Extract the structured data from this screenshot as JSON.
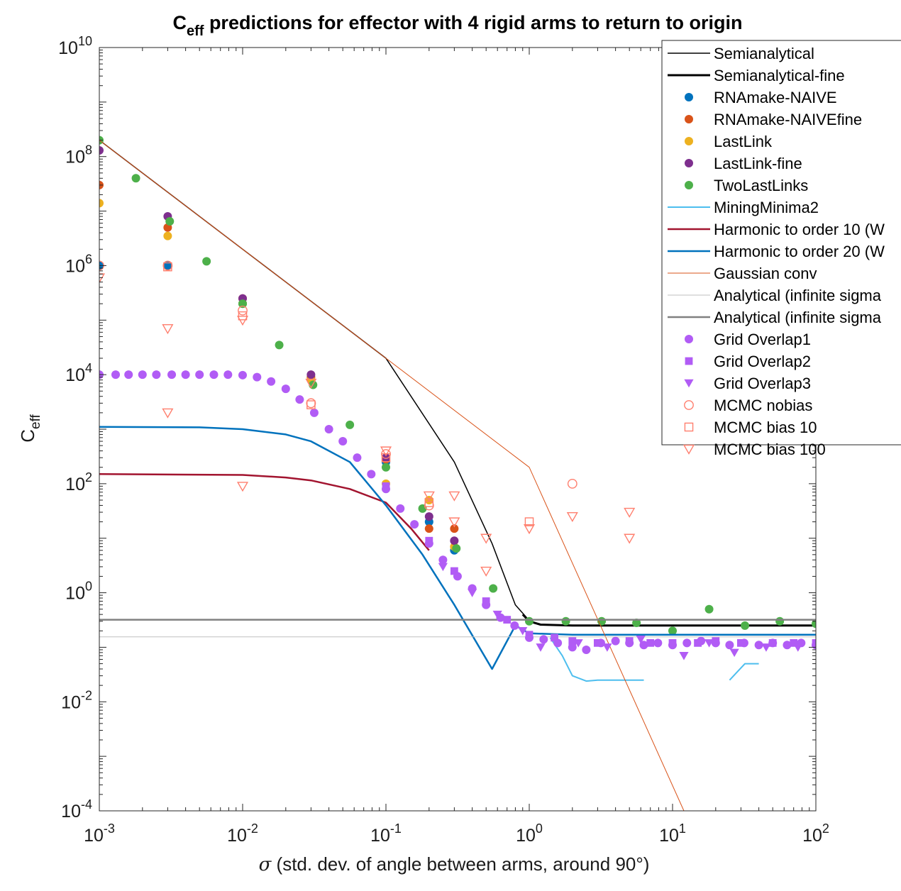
{
  "chart_data": {
    "type": "scatter",
    "title_main": "C",
    "title_sub": "eff",
    "title_rest": " predictions for effector with 4 rigid arms to return to origin",
    "xlabel_symbol": "σ",
    "xlabel_text": " (std. dev. of angle between arms, around 90°)",
    "ylabel_main": "C",
    "ylabel_sub": "eff",
    "xscale": "log",
    "yscale": "log",
    "xlim": [
      0.001,
      100
    ],
    "ylim": [
      0.0001,
      10000000000
    ],
    "legend_position": "top-right",
    "x_ticks": [
      {
        "value": 0.001,
        "base": "10",
        "exp": "-3"
      },
      {
        "value": 0.01,
        "base": "10",
        "exp": "-2"
      },
      {
        "value": 0.1,
        "base": "10",
        "exp": "-1"
      },
      {
        "value": 1,
        "base": "10",
        "exp": "0"
      },
      {
        "value": 10,
        "base": "10",
        "exp": "1"
      },
      {
        "value": 100,
        "base": "10",
        "exp": "2"
      }
    ],
    "y_ticks": [
      {
        "value": 0.0001,
        "base": "10",
        "exp": "-4"
      },
      {
        "value": 0.01,
        "base": "10",
        "exp": "-2"
      },
      {
        "value": 1,
        "base": "10",
        "exp": "0"
      },
      {
        "value": 100,
        "base": "10",
        "exp": "2"
      },
      {
        "value": 10000,
        "base": "10",
        "exp": "4"
      },
      {
        "value": 1000000,
        "base": "10",
        "exp": "6"
      },
      {
        "value": 100000000,
        "base": "10",
        "exp": "8"
      },
      {
        "value": 10000000000,
        "base": "10",
        "exp": "10"
      }
    ],
    "series": [
      {
        "name": "Semianalytical",
        "style": "line",
        "color": "#000000",
        "width": 1.5,
        "points": [
          [
            0.001,
            200000000
          ],
          [
            0.01,
            2000000
          ],
          [
            0.1,
            20000
          ],
          [
            0.3,
            250
          ],
          [
            0.55,
            8
          ],
          [
            0.8,
            0.6
          ],
          [
            1.0,
            0.31
          ],
          [
            1.2,
            0.26
          ],
          [
            2,
            0.25
          ],
          [
            10,
            0.25
          ],
          [
            100,
            0.25
          ]
        ]
      },
      {
        "name": "Semianalytical-fine",
        "style": "line",
        "color": "#000000",
        "width": 3,
        "points": [
          [
            0.9,
            0.4
          ],
          [
            1.0,
            0.3
          ],
          [
            1.2,
            0.26
          ],
          [
            2,
            0.25
          ],
          [
            10,
            0.25
          ],
          [
            100,
            0.25
          ]
        ]
      },
      {
        "name": "RNAmake-NAIVE",
        "style": "marker",
        "marker": "circle",
        "color": "#0072BD",
        "fill": true,
        "points": [
          [
            0.001,
            1000000
          ],
          [
            0.003,
            1000000
          ],
          [
            0.01,
            200000
          ],
          [
            0.03,
            8000
          ],
          [
            0.1,
            250
          ],
          [
            0.2,
            20
          ],
          [
            0.3,
            6
          ]
        ]
      },
      {
        "name": "RNAmake-NAIVEfine",
        "style": "marker",
        "marker": "circle",
        "color": "#D95319",
        "fill": true,
        "points": [
          [
            0.001,
            30000000
          ],
          [
            0.003,
            5000000
          ],
          [
            0.01,
            250000
          ],
          [
            0.03,
            9000
          ],
          [
            0.1,
            280
          ],
          [
            0.2,
            15
          ],
          [
            0.3,
            15
          ]
        ]
      },
      {
        "name": "LastLink",
        "style": "marker",
        "marker": "circle",
        "color": "#EDB120",
        "fill": true,
        "points": [
          [
            0.001,
            14000000
          ],
          [
            0.003,
            3500000
          ],
          [
            0.01,
            200000
          ],
          [
            0.03,
            8000
          ],
          [
            0.1,
            100
          ],
          [
            0.2,
            50
          ],
          [
            0.3,
            7
          ]
        ]
      },
      {
        "name": "LastLink-fine",
        "style": "marker",
        "marker": "circle",
        "color": "#7E2F8E",
        "fill": true,
        "points": [
          [
            0.001,
            130000000
          ],
          [
            0.003,
            8000000
          ],
          [
            0.01,
            250000
          ],
          [
            0.03,
            10000
          ],
          [
            0.1,
            300
          ],
          [
            0.2,
            25
          ],
          [
            0.3,
            9
          ]
        ]
      },
      {
        "name": "TwoLastLinks",
        "style": "marker",
        "marker": "circle",
        "color": "#4DB04A",
        "fill": true,
        "points": [
          [
            0.001,
            200000000
          ],
          [
            0.0018,
            40000000
          ],
          [
            0.0031,
            6500000
          ],
          [
            0.0056,
            1200000
          ],
          [
            0.01,
            200000
          ],
          [
            0.018,
            35000
          ],
          [
            0.031,
            6500
          ],
          [
            0.056,
            1200
          ],
          [
            0.1,
            200
          ],
          [
            0.18,
            35
          ],
          [
            0.31,
            6.5
          ],
          [
            0.56,
            1.2
          ],
          [
            1.0,
            0.3
          ],
          [
            1.8,
            0.3
          ],
          [
            3.2,
            0.3
          ],
          [
            5.6,
            0.28
          ],
          [
            10,
            0.2
          ],
          [
            18,
            0.5
          ],
          [
            32,
            0.25
          ],
          [
            56,
            0.3
          ],
          [
            100,
            0.27
          ]
        ]
      },
      {
        "name": "MiningMinima2",
        "style": "line",
        "color": "#4DBEEE",
        "width": 2,
        "segments": [
          [
            [
              1.4,
              0.15
            ],
            [
              1.7,
              0.07
            ],
            [
              2,
              0.03
            ],
            [
              2.5,
              0.024
            ],
            [
              3,
              0.025
            ],
            [
              4,
              0.025
            ],
            [
              6.3,
              0.025
            ]
          ],
          [
            [
              25,
              0.025
            ],
            [
              32,
              0.05
            ],
            [
              40,
              0.05
            ]
          ]
        ]
      },
      {
        "name": "Harmonic to order 10 (W",
        "style": "line",
        "color": "#A2142F",
        "width": 2.5,
        "points": [
          [
            0.001,
            150
          ],
          [
            0.01,
            145
          ],
          [
            0.02,
            130
          ],
          [
            0.03,
            115
          ],
          [
            0.056,
            80
          ],
          [
            0.1,
            45
          ],
          [
            0.15,
            15
          ],
          [
            0.2,
            6
          ]
        ]
      },
      {
        "name": "Harmonic to order 20 (W",
        "style": "line",
        "color": "#0072BD",
        "width": 2.5,
        "points": [
          [
            0.001,
            1100
          ],
          [
            0.005,
            1080
          ],
          [
            0.01,
            1000
          ],
          [
            0.02,
            800
          ],
          [
            0.03,
            600
          ],
          [
            0.056,
            250
          ],
          [
            0.1,
            40
          ],
          [
            0.18,
            5
          ],
          [
            0.3,
            0.6
          ],
          [
            0.55,
            0.04
          ],
          [
            0.8,
            0.25
          ],
          [
            1.0,
            0.18
          ],
          [
            2,
            0.17
          ],
          [
            10,
            0.17
          ],
          [
            100,
            0.17
          ]
        ]
      },
      {
        "name": "Gaussian conv",
        "style": "line",
        "color": "#D95319",
        "width": 1,
        "points": [
          [
            0.001,
            200000000
          ],
          [
            0.01,
            2000000
          ],
          [
            0.1,
            20000
          ],
          [
            1,
            200
          ],
          [
            12,
            0.0001
          ]
        ]
      },
      {
        "name": "Analytical (infinite sigma",
        "style": "line",
        "color": "#BFBFBF",
        "width": 1,
        "points": [
          [
            0.001,
            0.155
          ],
          [
            100,
            0.155
          ]
        ]
      },
      {
        "name": "Analytical (infinite sigma",
        "style": "line",
        "color": "#808080",
        "width": 2.5,
        "points": [
          [
            0.001,
            0.32
          ],
          [
            100,
            0.32
          ]
        ]
      },
      {
        "name": "Grid Overlap1",
        "style": "marker",
        "marker": "circle",
        "color": "#B15CF5",
        "fill": true,
        "points": [
          [
            0.001,
            10000
          ],
          [
            0.0013,
            10000
          ],
          [
            0.0016,
            10000
          ],
          [
            0.002,
            10000
          ],
          [
            0.0025,
            10000
          ],
          [
            0.0032,
            10000
          ],
          [
            0.004,
            10000
          ],
          [
            0.005,
            10000
          ],
          [
            0.0063,
            10000
          ],
          [
            0.0079,
            10000
          ],
          [
            0.01,
            9800
          ],
          [
            0.0126,
            9000
          ],
          [
            0.0158,
            7500
          ],
          [
            0.02,
            5500
          ],
          [
            0.025,
            3500
          ],
          [
            0.0316,
            2000
          ],
          [
            0.04,
            1000
          ],
          [
            0.05,
            600
          ],
          [
            0.063,
            300
          ],
          [
            0.079,
            150
          ],
          [
            0.1,
            80
          ],
          [
            0.126,
            35
          ],
          [
            0.158,
            18
          ],
          [
            0.2,
            8
          ],
          [
            0.25,
            4
          ],
          [
            0.316,
            2
          ],
          [
            0.4,
            1.2
          ],
          [
            0.5,
            0.6
          ],
          [
            0.63,
            0.35
          ],
          [
            0.79,
            0.25
          ],
          [
            1.0,
            0.15
          ],
          [
            1.26,
            0.14
          ],
          [
            1.58,
            0.12
          ],
          [
            2,
            0.1
          ],
          [
            2.5,
            0.09
          ],
          [
            3.16,
            0.12
          ],
          [
            4,
            0.13
          ],
          [
            5,
            0.12
          ],
          [
            6.3,
            0.11
          ],
          [
            7.9,
            0.12
          ],
          [
            10,
            0.11
          ],
          [
            12.6,
            0.12
          ],
          [
            15.8,
            0.13
          ],
          [
            20,
            0.12
          ],
          [
            25,
            0.11
          ],
          [
            31.6,
            0.12
          ],
          [
            40,
            0.11
          ],
          [
            50,
            0.12
          ],
          [
            63,
            0.11
          ],
          [
            79,
            0.12
          ],
          [
            100,
            0.11
          ]
        ]
      },
      {
        "name": "Grid Overlap2",
        "style": "marker",
        "marker": "square",
        "color": "#B15CF5",
        "fill": true,
        "points": [
          [
            0.1,
            90
          ],
          [
            0.2,
            9
          ],
          [
            0.3,
            2.5
          ],
          [
            0.5,
            0.7
          ],
          [
            0.7,
            0.32
          ],
          [
            1.0,
            0.17
          ],
          [
            1.5,
            0.15
          ],
          [
            2,
            0.13
          ],
          [
            3,
            0.12
          ],
          [
            5,
            0.13
          ],
          [
            7,
            0.12
          ],
          [
            10,
            0.12
          ],
          [
            15,
            0.12
          ],
          [
            20,
            0.13
          ],
          [
            30,
            0.12
          ],
          [
            50,
            0.12
          ],
          [
            70,
            0.12
          ],
          [
            100,
            0.12
          ]
        ]
      },
      {
        "name": "Grid Overlap3",
        "style": "marker",
        "marker": "triangle-down",
        "color": "#B15CF5",
        "fill": true,
        "points": [
          [
            0.25,
            3
          ],
          [
            0.4,
            1.0
          ],
          [
            0.6,
            0.4
          ],
          [
            0.9,
            0.2
          ],
          [
            1.2,
            0.1
          ],
          [
            2.2,
            0.12
          ],
          [
            3.5,
            0.1
          ],
          [
            6,
            0.14
          ],
          [
            12,
            0.07
          ],
          [
            18,
            0.12
          ],
          [
            27,
            0.08
          ],
          [
            45,
            0.1
          ],
          [
            75,
            0.1
          ]
        ]
      },
      {
        "name": "MCMC nobias",
        "style": "marker",
        "marker": "circle",
        "color": "#FF7F6E",
        "fill": false,
        "points": [
          [
            0.001,
            1000000
          ],
          [
            0.003,
            1000000
          ],
          [
            0.01,
            150000
          ],
          [
            0.03,
            3000
          ],
          [
            0.1,
            350
          ],
          [
            0.2,
            40
          ],
          [
            2,
            100
          ]
        ]
      },
      {
        "name": "MCMC bias 10",
        "style": "marker",
        "marker": "square",
        "color": "#FF7F6E",
        "fill": false,
        "points": [
          [
            0.003,
            950000
          ],
          [
            0.01,
            120000
          ],
          [
            0.03,
            2800
          ],
          [
            0.1,
            300
          ],
          [
            0.2,
            45
          ],
          [
            1.0,
            20
          ]
        ]
      },
      {
        "name": "MCMC bias 100",
        "style": "marker",
        "marker": "triangle-down",
        "color": "#FF7F6E",
        "fill": false,
        "points": [
          [
            0.001,
            600000
          ],
          [
            0.003,
            70000
          ],
          [
            0.003,
            2000
          ],
          [
            0.01,
            100000
          ],
          [
            0.01,
            90
          ],
          [
            0.03,
            7000
          ],
          [
            0.1,
            400
          ],
          [
            0.2,
            60
          ],
          [
            0.3,
            60
          ],
          [
            0.3,
            20
          ],
          [
            0.5,
            10
          ],
          [
            0.5,
            2.5
          ],
          [
            1.0,
            15
          ],
          [
            2,
            25
          ],
          [
            5,
            30
          ],
          [
            5,
            10
          ]
        ]
      }
    ]
  }
}
